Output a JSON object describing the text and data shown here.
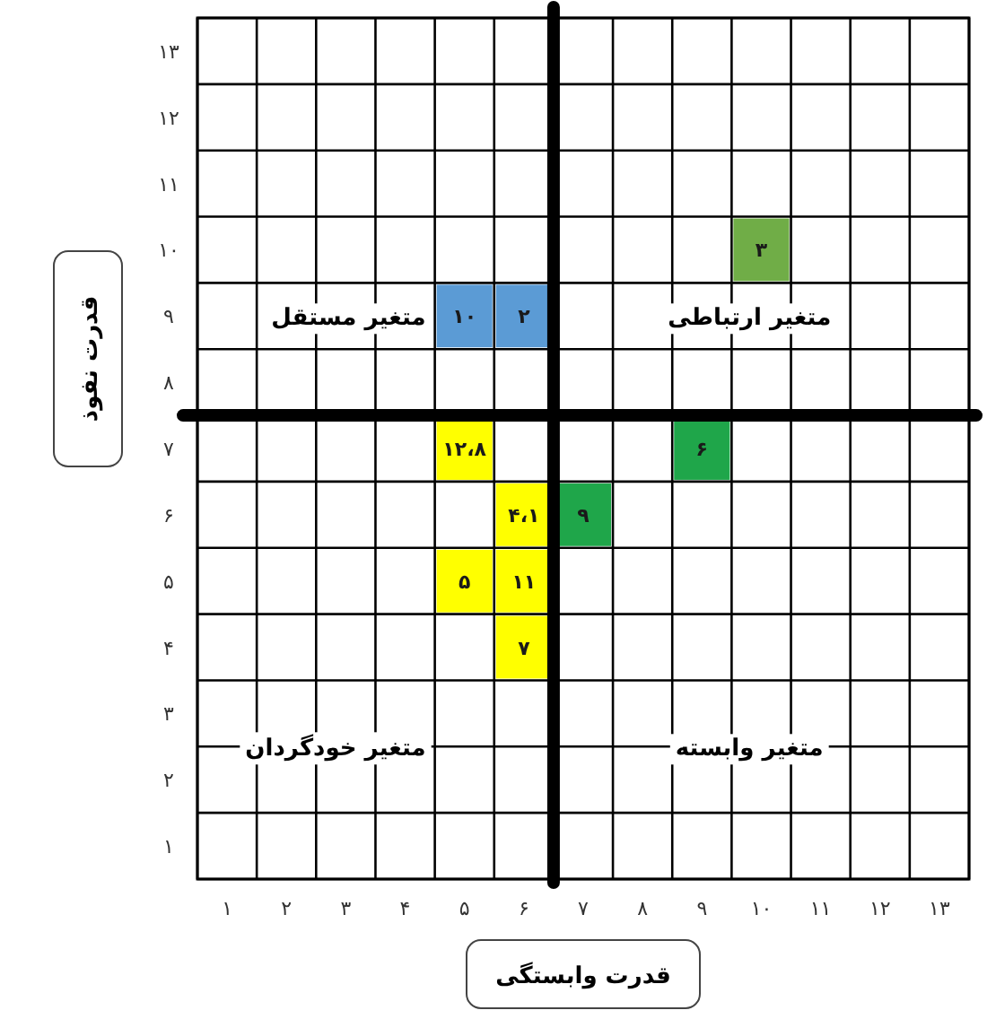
{
  "chart_data": {
    "type": "scatter",
    "xlabel": "قدرت وابستگی",
    "ylabel": "قدرت نفوذ",
    "x": [
      5,
      6,
      10,
      9,
      5,
      6,
      7,
      5,
      6,
      6
    ],
    "values": [
      9,
      9,
      10,
      7,
      7,
      6,
      6,
      5,
      5,
      4
    ],
    "colors": [
      "#5b9bd5",
      "#5b9bd5",
      "#70ad47",
      "#1fa64a",
      "#ffff00",
      "#ffff00",
      "#1fa64a",
      "#ffff00",
      "#ffff00",
      "#ffff00"
    ],
    "marker": "square",
    "grid": true,
    "xlim": [
      0.5,
      13.5
    ],
    "ylim": [
      0.5,
      13.5
    ],
    "xticks": [
      {
        "value": 1,
        "label": "۱"
      },
      {
        "value": 2,
        "label": "۲"
      },
      {
        "value": 3,
        "label": "۳"
      },
      {
        "value": 4,
        "label": "۴"
      },
      {
        "value": 5,
        "label": "۵"
      },
      {
        "value": 6,
        "label": "۶"
      },
      {
        "value": 7,
        "label": "۷"
      },
      {
        "value": 8,
        "label": "۸"
      },
      {
        "value": 9,
        "label": "۹"
      },
      {
        "value": 10,
        "label": "۱۰"
      },
      {
        "value": 11,
        "label": "۱۱"
      },
      {
        "value": 12,
        "label": "۱۲"
      },
      {
        "value": 13,
        "label": "۱۳"
      }
    ],
    "yticks": [
      {
        "value": 1,
        "label": "۱"
      },
      {
        "value": 2,
        "label": "۲"
      },
      {
        "value": 3,
        "label": "۳"
      },
      {
        "value": 4,
        "label": "۴"
      },
      {
        "value": 5,
        "label": "۵"
      },
      {
        "value": 6,
        "label": "۶"
      },
      {
        "value": 7,
        "label": "۷"
      },
      {
        "value": 8,
        "label": "۸"
      },
      {
        "value": 9,
        "label": "۹"
      },
      {
        "value": 10,
        "label": "۱۰"
      },
      {
        "value": 11,
        "label": "۱۱"
      },
      {
        "value": 12,
        "label": "۱۲"
      },
      {
        "value": 13,
        "label": "۱۳"
      }
    ],
    "ref_lines": [
      {
        "axis": "x",
        "value": 6.5,
        "color": "#000000"
      },
      {
        "axis": "y",
        "value": 7.5,
        "color": "#000000"
      }
    ],
    "annotations": [
      "متغیر مستقل",
      "متغیر ارتباطی",
      "متغیر خودگردان",
      "متغیر وابسته",
      {
        "text": "۱۰",
        "x": 5,
        "y": 9
      },
      {
        "text": "۲",
        "x": 6,
        "y": 9
      },
      {
        "text": "۳",
        "x": 10,
        "y": 10
      },
      {
        "text": "۶",
        "x": 9,
        "y": 7
      },
      {
        "text": "۱۲،۸",
        "x": 5,
        "y": 7
      },
      {
        "text": "۴،۱",
        "x": 6,
        "y": 6
      },
      {
        "text": "۹",
        "x": 7,
        "y": 6
      },
      {
        "text": "۵",
        "x": 5,
        "y": 5
      },
      {
        "text": "۱۱",
        "x": 6,
        "y": 5
      },
      {
        "text": "۷",
        "x": 6,
        "y": 4
      }
    ]
  }
}
